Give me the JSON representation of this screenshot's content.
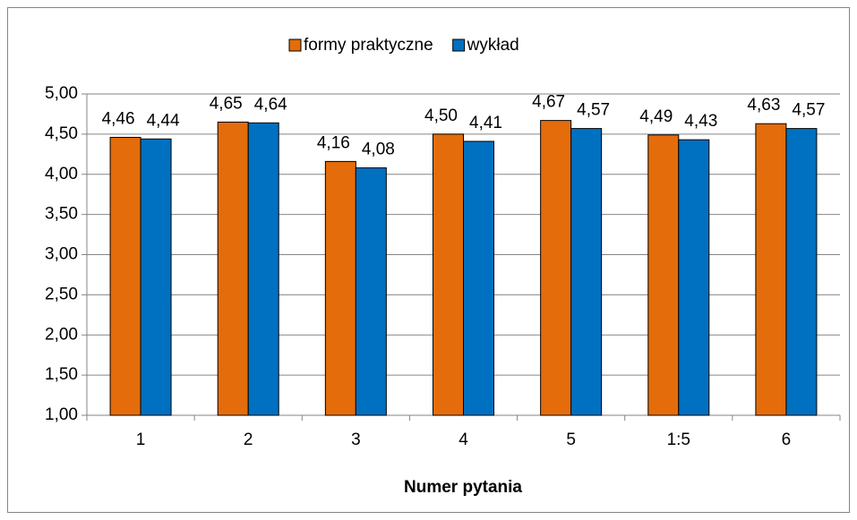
{
  "chart_data": {
    "type": "bar",
    "x_label": "Numer pytania",
    "categories": [
      "1",
      "2",
      "3",
      "4",
      "5",
      "1:5",
      "6"
    ],
    "series": [
      {
        "name": "formy praktyczne",
        "color": "#E46C0A",
        "values": [
          4.46,
          4.65,
          4.16,
          4.5,
          4.67,
          4.49,
          4.63
        ],
        "value_labels": [
          "4,46",
          "4,65",
          "4,16",
          "4,50",
          "4,67",
          "4,49",
          "4,63"
        ]
      },
      {
        "name": "wykład",
        "color": "#0070C0",
        "values": [
          4.44,
          4.64,
          4.08,
          4.41,
          4.57,
          4.43,
          4.57
        ],
        "value_labels": [
          "4,44",
          "4,64",
          "4,08",
          "4,41",
          "4,57",
          "4,43",
          "4,57"
        ]
      }
    ],
    "ylim": [
      1,
      5
    ],
    "yticks": [
      {
        "value": 1,
        "label": "1,00"
      },
      {
        "value": 1.5,
        "label": "1,50"
      },
      {
        "value": 2,
        "label": "2,00"
      },
      {
        "value": 2.5,
        "label": "2,50"
      },
      {
        "value": 3,
        "label": "3,00"
      },
      {
        "value": 3.5,
        "label": "3,50"
      },
      {
        "value": 4,
        "label": "4,00"
      },
      {
        "value": 4.5,
        "label": "4,50"
      },
      {
        "value": 5,
        "label": "5,00"
      }
    ],
    "grid": true,
    "legend": "top"
  }
}
